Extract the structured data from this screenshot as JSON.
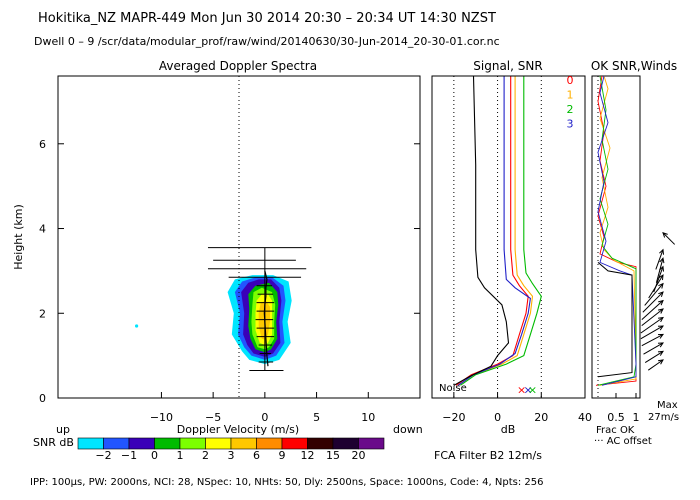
{
  "header": {
    "line1": "Hokitika_NZ   MAPR-449   Mon Jun 30 2014 20:30 – 20:34 UT 14:30 NZST",
    "line2": "Dwell   0 –   9    /scr/data/modular_prof/raw/wind/20140630/30-Jun-2014_20-30-01.cor.nc"
  },
  "footer": {
    "params": "IPP: 100μs,   PW: 2000ns,   NCI:   28,   NSpec: 10,  NHts: 50,   Dly: 2500ns,   Space: 1000ns,   Code: 4,   Npts: 256",
    "filter": "FCA Filter B2 12m/s"
  },
  "colors": {
    "snr_scale": [
      "#00e5ff",
      "#2255ff",
      "#3a00b8",
      "#00bb00",
      "#7cff00",
      "#ffff00",
      "#ffc800",
      "#ff8c00",
      "#ff0000",
      "#330000",
      "#1e0030",
      "#6a0a8a"
    ],
    "beam": {
      "0": "#ff0000",
      "1": "#ffb000",
      "2": "#00bb00",
      "3": "#2020c8"
    }
  },
  "chart_data": [
    {
      "type": "heatmap",
      "title": "Averaged Doppler Spectra",
      "xlabel": "Doppler Velocity (m/s)",
      "ylabel": "Height (km)",
      "xlim": [
        -20,
        15
      ],
      "ylim": [
        0,
        7.6
      ],
      "xticks": [
        -10,
        -5,
        0,
        5,
        10
      ],
      "yticks": [
        0,
        2,
        4,
        6
      ],
      "side_labels": {
        "left": "up",
        "right": "down"
      },
      "colorbar": {
        "label": "SNR dB",
        "ticks": [
          "−2",
          "−1",
          "0",
          "1",
          "2",
          "3",
          "6",
          "9",
          "12",
          "15",
          "20"
        ]
      },
      "contours": [
        {
          "level": 0,
          "points": [
            [
              -1.5,
              0.9
            ],
            [
              -2.2,
              1.1
            ],
            [
              -3.2,
              1.5
            ],
            [
              -3.0,
              2.0
            ],
            [
              -3.6,
              2.5
            ],
            [
              -2.9,
              2.8
            ],
            [
              -1.2,
              2.9
            ],
            [
              0.8,
              2.9
            ],
            [
              2.3,
              2.75
            ],
            [
              2.6,
              2.3
            ],
            [
              2.2,
              1.8
            ],
            [
              2.5,
              1.3
            ],
            [
              1.4,
              0.9
            ],
            [
              0.0,
              0.8
            ]
          ]
        },
        {
          "level": 1,
          "points": [
            [
              -1.3,
              1.0
            ],
            [
              -2.0,
              1.2
            ],
            [
              -2.6,
              1.5
            ],
            [
              -2.4,
              2.0
            ],
            [
              -2.9,
              2.5
            ],
            [
              -2.2,
              2.75
            ],
            [
              -0.9,
              2.85
            ],
            [
              0.7,
              2.85
            ],
            [
              1.8,
              2.65
            ],
            [
              2.0,
              2.3
            ],
            [
              1.7,
              1.8
            ],
            [
              1.9,
              1.3
            ],
            [
              1.1,
              1.0
            ],
            [
              0.0,
              0.9
            ]
          ]
        },
        {
          "level": 2,
          "points": [
            [
              -1.1,
              1.05
            ],
            [
              -1.7,
              1.25
            ],
            [
              -2.1,
              1.5
            ],
            [
              -2.0,
              2.0
            ],
            [
              -2.3,
              2.5
            ],
            [
              -1.6,
              2.72
            ],
            [
              -0.6,
              2.8
            ],
            [
              0.6,
              2.8
            ],
            [
              1.4,
              2.6
            ],
            [
              1.6,
              2.3
            ],
            [
              1.4,
              1.8
            ],
            [
              1.5,
              1.3
            ],
            [
              0.8,
              1.05
            ],
            [
              0.0,
              0.97
            ]
          ]
        },
        {
          "level": 3,
          "points": [
            [
              -0.9,
              1.15
            ],
            [
              -1.4,
              1.4
            ],
            [
              -1.6,
              1.7
            ],
            [
              -1.5,
              2.1
            ],
            [
              -1.6,
              2.45
            ],
            [
              -0.9,
              2.65
            ],
            [
              0.4,
              2.72
            ],
            [
              1.2,
              2.5
            ],
            [
              1.3,
              2.2
            ],
            [
              1.1,
              1.8
            ],
            [
              1.2,
              1.4
            ],
            [
              0.6,
              1.15
            ],
            [
              0.0,
              1.08
            ]
          ]
        },
        {
          "level": 4,
          "points": [
            [
              -0.7,
              1.2
            ],
            [
              -1.2,
              1.5
            ],
            [
              -1.3,
              1.8
            ],
            [
              -1.2,
              2.2
            ],
            [
              -1.1,
              2.5
            ],
            [
              -0.3,
              2.6
            ],
            [
              0.7,
              2.5
            ],
            [
              1.0,
              2.2
            ],
            [
              0.9,
              1.8
            ],
            [
              0.9,
              1.4
            ],
            [
              0.4,
              1.2
            ],
            [
              0.0,
              1.15
            ]
          ]
        },
        {
          "level": 5,
          "points": [
            [
              -0.5,
              1.3
            ],
            [
              -0.9,
              1.6
            ],
            [
              -0.9,
              2.0
            ],
            [
              -0.8,
              2.3
            ],
            [
              -0.3,
              2.45
            ],
            [
              0.3,
              2.45
            ],
            [
              0.7,
              2.3
            ],
            [
              0.7,
              1.9
            ],
            [
              0.7,
              1.5
            ],
            [
              0.3,
              1.3
            ],
            [
              0.0,
              1.25
            ]
          ]
        },
        {
          "level": 6,
          "points": [
            [
              -0.3,
              1.4
            ],
            [
              -0.6,
              1.7
            ],
            [
              -0.6,
              2.0
            ],
            [
              -0.4,
              2.25
            ],
            [
              0.1,
              2.3
            ],
            [
              0.5,
              2.15
            ],
            [
              0.5,
              1.8
            ],
            [
              0.3,
              1.5
            ],
            [
              0.0,
              1.38
            ]
          ]
        }
      ],
      "mean_velocity_profile": [
        [
          0.3,
          0.75
        ],
        [
          0.2,
          1.0
        ],
        [
          0.15,
          1.2
        ],
        [
          0.1,
          1.4
        ],
        [
          0.05,
          1.6
        ],
        [
          0.0,
          1.8
        ],
        [
          -0.05,
          2.0
        ],
        [
          0.0,
          2.2
        ],
        [
          0.1,
          2.4
        ],
        [
          0.1,
          2.6
        ],
        [
          0.2,
          2.8
        ],
        [
          0.0,
          3.0
        ]
      ],
      "error_bars": [
        {
          "h": 0.65,
          "lo": -1.5,
          "hi": 1.8
        },
        {
          "h": 0.85,
          "lo": -0.6,
          "hi": 0.8
        },
        {
          "h": 1.05,
          "lo": -0.5,
          "hi": 0.6
        },
        {
          "h": 1.25,
          "lo": -0.6,
          "hi": 0.7
        },
        {
          "h": 1.45,
          "lo": -0.8,
          "hi": 0.9
        },
        {
          "h": 1.65,
          "lo": -0.8,
          "hi": 0.9
        },
        {
          "h": 1.85,
          "lo": -0.9,
          "hi": 0.8
        },
        {
          "h": 2.05,
          "lo": -0.8,
          "hi": 0.9
        },
        {
          "h": 2.25,
          "lo": -0.8,
          "hi": 0.9
        },
        {
          "h": 2.45,
          "lo": -0.7,
          "hi": 0.8
        },
        {
          "h": 2.65,
          "lo": -0.8,
          "hi": 0.7
        },
        {
          "h": 2.85,
          "lo": -3.5,
          "hi": 3.5
        },
        {
          "h": 3.05,
          "lo": -5.5,
          "hi": 4.0
        },
        {
          "h": 3.25,
          "lo": -5.0,
          "hi": 3.0
        },
        {
          "h": 3.55,
          "lo": -5.5,
          "hi": 4.5
        }
      ],
      "isolated_point": [
        -12.4,
        1.7
      ]
    },
    {
      "type": "line",
      "title": "Signal, SNR",
      "xlabel": "dB",
      "xlim": [
        -30,
        40
      ],
      "ylim": [
        0,
        7.6
      ],
      "xticks": [
        -20,
        0,
        20,
        40
      ],
      "annotation": "Noise",
      "series": [
        {
          "name": "0",
          "values": [
            [
              -19,
              0.3
            ],
            [
              -12,
              0.55
            ],
            [
              0,
              0.8
            ],
            [
              7,
              1.0
            ],
            [
              10,
              1.5
            ],
            [
              13,
              2.0
            ],
            [
              14,
              2.4
            ],
            [
              10,
              2.65
            ],
            [
              7,
              2.9
            ],
            [
              6,
              3.5
            ],
            [
              6,
              5.0
            ],
            [
              6,
              7.6
            ]
          ]
        },
        {
          "name": "1",
          "values": [
            [
              -18,
              0.3
            ],
            [
              -11,
              0.55
            ],
            [
              2,
              0.8
            ],
            [
              9,
              1.0
            ],
            [
              12,
              1.5
            ],
            [
              15,
              2.0
            ],
            [
              16,
              2.4
            ],
            [
              12,
              2.65
            ],
            [
              9,
              2.9
            ],
            [
              8,
              3.5
            ],
            [
              8,
              5.0
            ],
            [
              8,
              7.6
            ]
          ]
        },
        {
          "name": "2",
          "values": [
            [
              -17,
              0.3
            ],
            [
              -10,
              0.55
            ],
            [
              4,
              0.8
            ],
            [
              12,
              1.0
            ],
            [
              15,
              1.5
            ],
            [
              18,
              2.0
            ],
            [
              20,
              2.4
            ],
            [
              16,
              2.7
            ],
            [
              13,
              2.95
            ],
            [
              12,
              3.5
            ],
            [
              12,
              5.0
            ],
            [
              12,
              7.6
            ]
          ]
        },
        {
          "name": "3",
          "values": [
            [
              -18,
              0.3
            ],
            [
              -11,
              0.55
            ],
            [
              1,
              0.8
            ],
            [
              8,
              1.05
            ],
            [
              11,
              1.5
            ],
            [
              14,
              2.0
            ],
            [
              15,
              2.35
            ],
            [
              8,
              2.6
            ],
            [
              4,
              2.8
            ],
            [
              3,
              3.5
            ],
            [
              3,
              5.0
            ],
            [
              3,
              7.6
            ]
          ]
        },
        {
          "name": "signal",
          "values": [
            [
              -20,
              0.3
            ],
            [
              -13,
              0.5
            ],
            [
              -3,
              0.75
            ],
            [
              0,
              1.0
            ],
            [
              5,
              1.3
            ],
            [
              4,
              1.8
            ],
            [
              2,
              2.2
            ],
            [
              -6,
              2.6
            ],
            [
              -9,
              2.85
            ],
            [
              -10,
              3.5
            ],
            [
              -10,
              5.5
            ],
            [
              -11,
              7.6
            ]
          ]
        }
      ],
      "noise_markers": [
        [
          11,
          0.15
        ],
        [
          14,
          0.15
        ],
        [
          16,
          0.15
        ]
      ],
      "reference_lines_x": [
        -20,
        0,
        20
      ]
    },
    {
      "type": "line",
      "title": "OK SNR,Winds",
      "xlabel": "Frac OK",
      "xticks": [
        "0.5",
        "1"
      ],
      "legend": [
        "0",
        "1",
        "2",
        "3"
      ],
      "note": "··· AC offset",
      "wind_max_label": "Max",
      "wind_max_value": "27m/s"
    }
  ]
}
